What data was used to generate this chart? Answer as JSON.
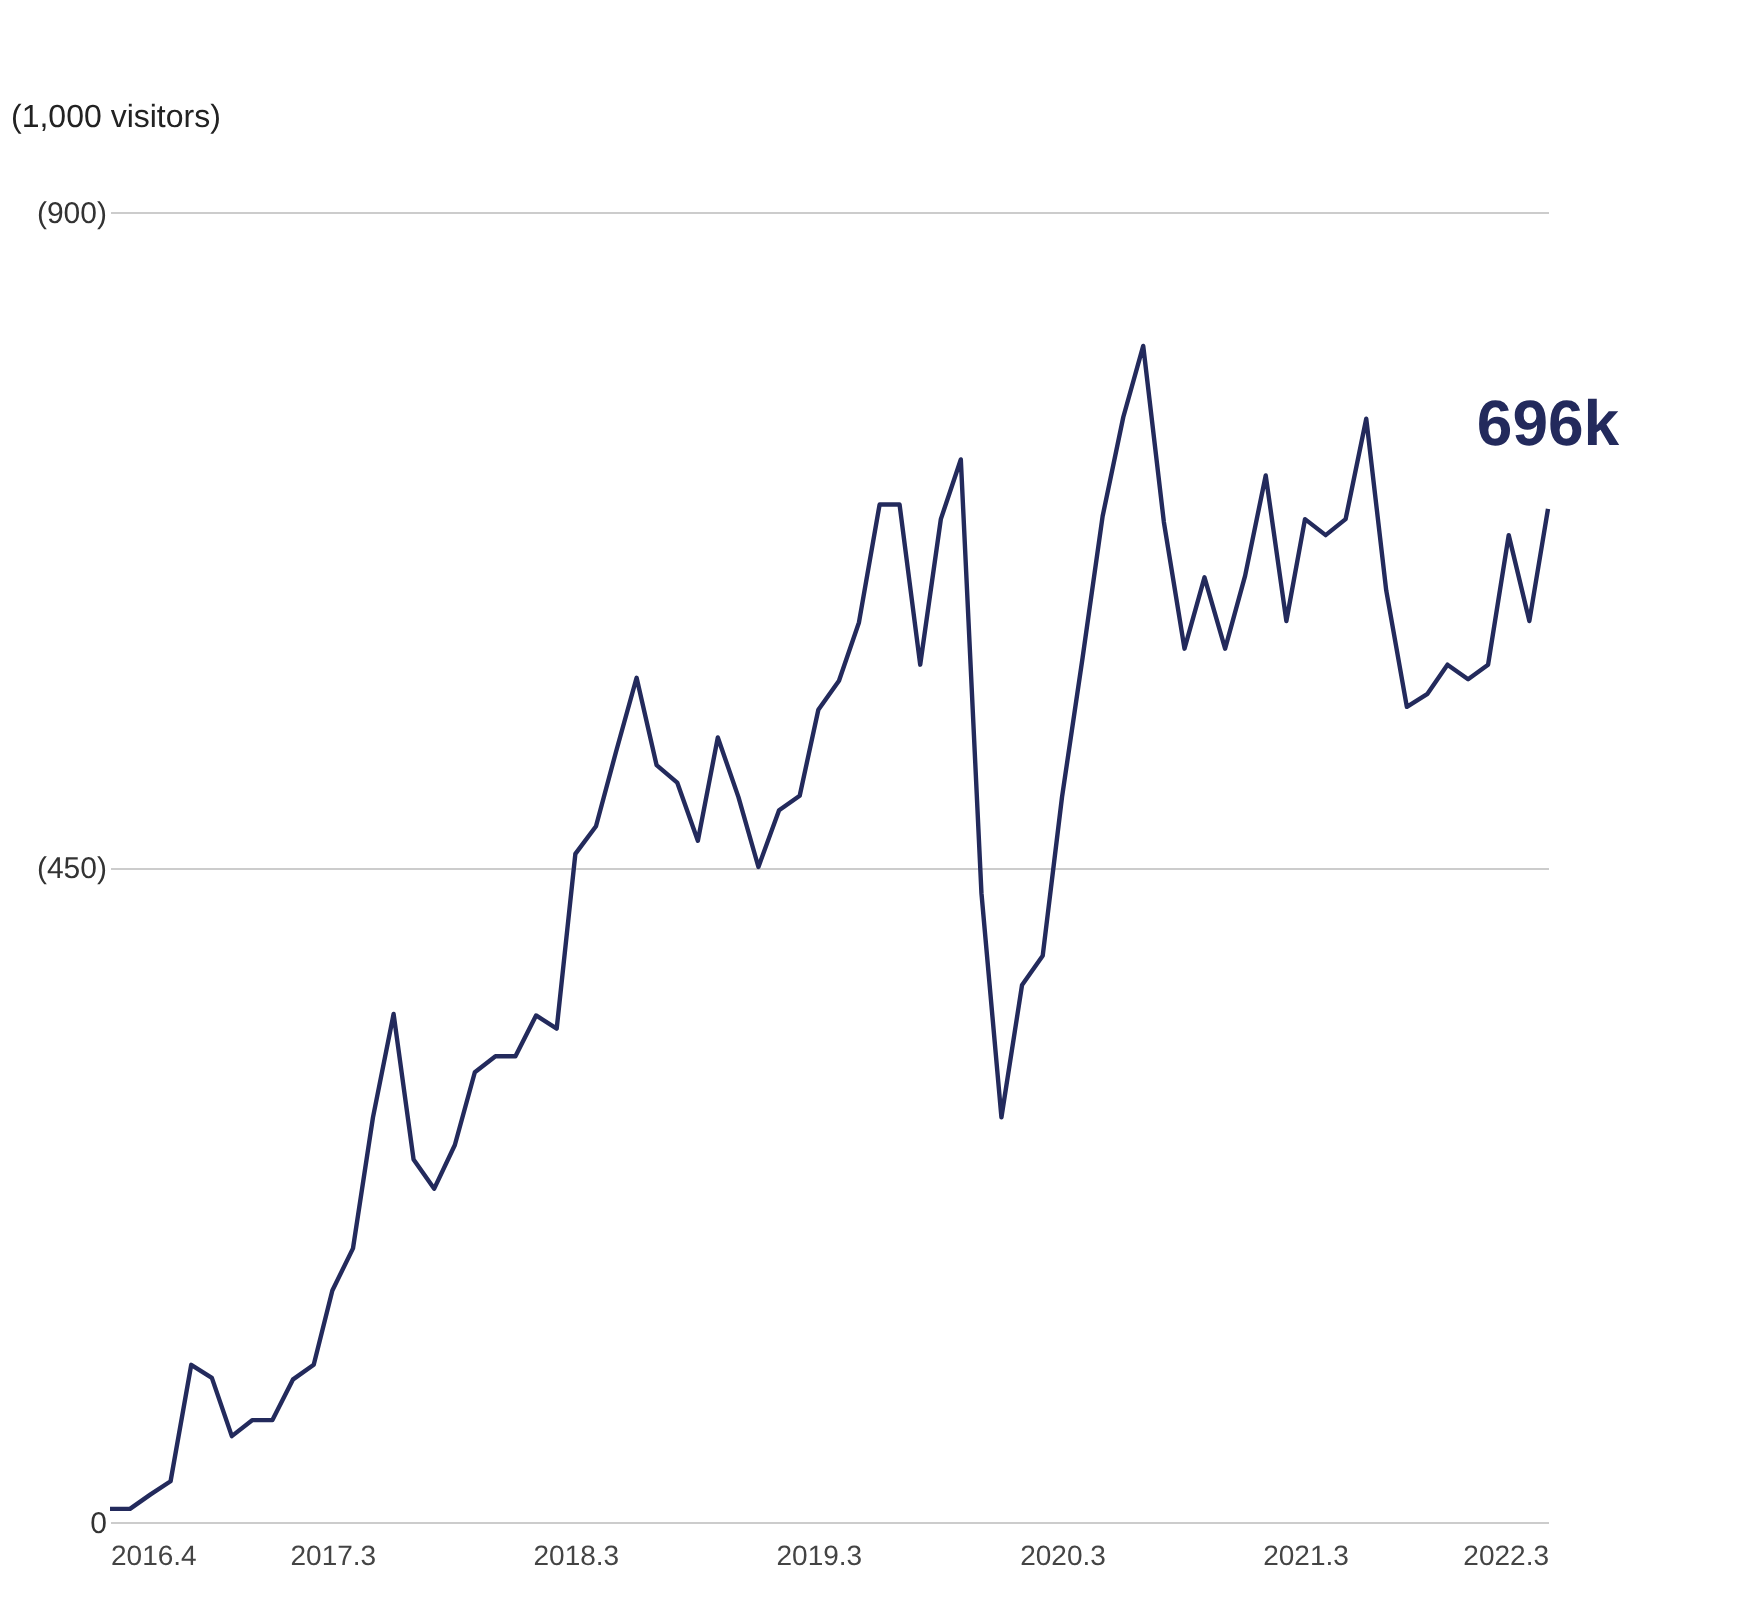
{
  "chart_data": {
    "type": "line",
    "ylabel": "(1,000 visitors)",
    "x": [
      "2016-04",
      "2016-05",
      "2016-06",
      "2016-07",
      "2016-08",
      "2016-09",
      "2016-10",
      "2016-11",
      "2016-12",
      "2017-01",
      "2017-02",
      "2017-03",
      "2017-04",
      "2017-05",
      "2017-06",
      "2017-07",
      "2017-08",
      "2017-09",
      "2017-10",
      "2017-11",
      "2017-12",
      "2018-01",
      "2018-02",
      "2018-03",
      "2018-04",
      "2018-05",
      "2018-06",
      "2018-07",
      "2018-08",
      "2018-09",
      "2018-10",
      "2018-11",
      "2018-12",
      "2019-01",
      "2019-02",
      "2019-03",
      "2019-04",
      "2019-05",
      "2019-06",
      "2019-07",
      "2019-08",
      "2019-09",
      "2019-10",
      "2019-11",
      "2019-12",
      "2020-01",
      "2020-02",
      "2020-03",
      "2020-04",
      "2020-05",
      "2020-06",
      "2020-07",
      "2020-08",
      "2020-09",
      "2020-10",
      "2020-11",
      "2020-12",
      "2021-01",
      "2021-02",
      "2021-03",
      "2021-04",
      "2021-05",
      "2021-06",
      "2021-07",
      "2021-08",
      "2021-09",
      "2021-10",
      "2021-11",
      "2021-12",
      "2022-01",
      "2022-02",
      "2022-03"
    ],
    "series": [
      {
        "color": "#232a5c",
        "values": [
          9,
          9,
          19,
          28,
          108,
          99,
          59,
          70,
          70,
          98,
          108,
          159,
          188,
          278,
          349,
          249,
          229,
          259,
          309,
          320,
          320,
          348,
          339,
          459,
          478,
          529,
          580,
          520,
          508,
          468,
          539,
          498,
          450,
          489,
          499,
          558,
          578,
          618,
          699,
          699,
          589,
          689,
          730,
          432,
          278,
          369,
          389,
          498,
          594,
          691,
          759,
          808,
          687,
          600,
          649,
          600,
          650,
          719,
          619,
          689,
          678,
          689,
          758,
          640,
          560,
          569,
          589,
          579,
          589,
          678,
          619,
          696
        ]
      }
    ],
    "xlim": [
      "2016-04",
      "2022-03"
    ],
    "xticks": [
      {
        "value": "2016-04",
        "label": "2016.4"
      },
      {
        "value": "2017-03",
        "label": "2017.3"
      },
      {
        "value": "2018-03",
        "label": "2018.3"
      },
      {
        "value": "2019-03",
        "label": "2019.3"
      },
      {
        "value": "2020-03",
        "label": "2020.3"
      },
      {
        "value": "2021-03",
        "label": "2021.3"
      },
      {
        "value": "2022-03",
        "label": "2022.3"
      }
    ],
    "ylim": [
      0,
      900
    ],
    "yticks": [
      {
        "value": 0,
        "label": "0"
      },
      {
        "value": 450,
        "label": "(450)"
      },
      {
        "value": 900,
        "label": "(900)"
      }
    ],
    "grid": "y",
    "marker": "none",
    "line_style": "solid",
    "annotations": [
      {
        "text": "696k",
        "x": "2022-03",
        "y": 696
      }
    ]
  }
}
